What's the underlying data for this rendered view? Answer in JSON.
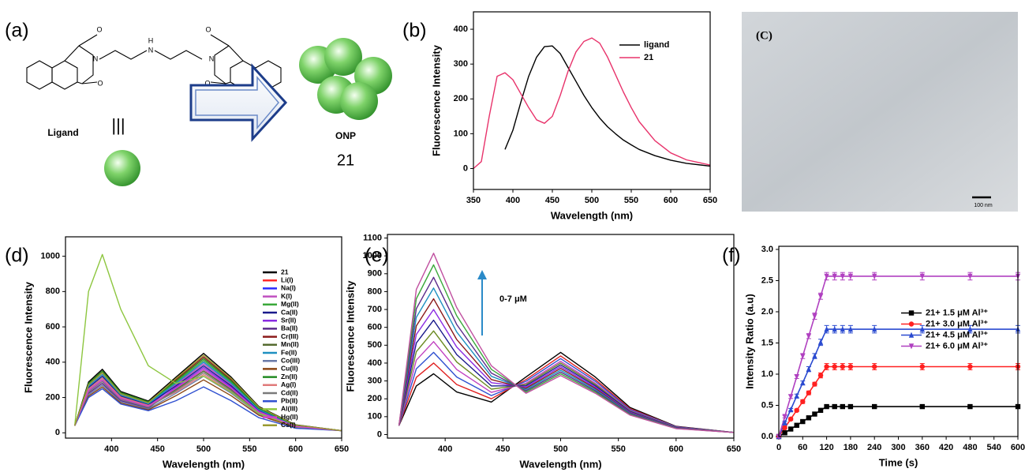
{
  "scheme": {
    "label": "(a)",
    "atoms": [
      "O",
      "N",
      "O",
      "H",
      "N",
      "N",
      "O",
      "O"
    ],
    "ligand": "Ligand",
    "equivalence": "|||",
    "product": "ONP",
    "number": "21"
  },
  "image": {
    "label": "(C)",
    "scale_bar": "100 nm"
  },
  "chart_data": [
    {
      "type": "line",
      "label": "(b)",
      "x_label": "Wavelength (nm)",
      "y_label": "Fluorescence Intensity",
      "xlim": [
        350,
        650
      ],
      "xticks": [
        350,
        400,
        450,
        500,
        550,
        600,
        650
      ],
      "ylim": [
        -60,
        450
      ],
      "yticks": [
        0,
        100,
        200,
        300,
        400
      ],
      "legend": "upper right",
      "x": [
        350,
        360,
        370,
        380,
        390,
        400,
        410,
        420,
        430,
        440,
        450,
        460,
        470,
        480,
        490,
        500,
        510,
        520,
        530,
        540,
        550,
        560,
        580,
        600,
        620,
        650
      ],
      "series": [
        {
          "name": "ligand",
          "color": "#000000",
          "values": [
            null,
            null,
            null,
            null,
            55,
            110,
            190,
            265,
            320,
            350,
            352,
            330,
            290,
            250,
            210,
            175,
            145,
            120,
            100,
            82,
            68,
            55,
            37,
            24,
            15,
            7
          ]
        },
        {
          "name": "21",
          "color": "#e8336b",
          "values": [
            0,
            20,
            150,
            265,
            275,
            255,
            215,
            175,
            140,
            130,
            150,
            210,
            280,
            335,
            365,
            375,
            360,
            320,
            270,
            220,
            175,
            135,
            80,
            45,
            25,
            10
          ]
        }
      ]
    },
    {
      "type": "line",
      "label": "(d)",
      "x_label": "Wavelength (nm)",
      "y_label": "Fluorescence Intensity",
      "xlim": [
        350,
        650
      ],
      "xticks": [
        400,
        450,
        500,
        550,
        600,
        650
      ],
      "ylim": [
        -30,
        1110
      ],
      "yticks": [
        0,
        200,
        400,
        600,
        800,
        1000
      ],
      "legend": "upper right",
      "x": [
        360,
        375,
        390,
        410,
        440,
        470,
        500,
        530,
        560,
        600,
        650
      ],
      "series": [
        {
          "name": "21",
          "color": "#000000",
          "values": [
            40,
            288,
            360,
            234,
            180,
            315,
            450,
            315,
            149,
            45,
            12
          ]
        },
        {
          "name": "Li(I)",
          "color": "#ff2a2a",
          "values": [
            40,
            264,
            330,
            215,
            165,
            294,
            420,
            294,
            139,
            42,
            12
          ]
        },
        {
          "name": "Na(I)",
          "color": "#2a2aff",
          "values": [
            40,
            248,
            310,
            202,
            155,
            280,
            400,
            280,
            132,
            40,
            12
          ]
        },
        {
          "name": "K(I)",
          "color": "#c04fc0",
          "values": [
            40,
            240,
            300,
            195,
            150,
            273,
            390,
            273,
            129,
            39,
            12
          ]
        },
        {
          "name": "Mg(II)",
          "color": "#3aa83a",
          "values": [
            40,
            272,
            340,
            221,
            170,
            287,
            410,
            287,
            135,
            41,
            12
          ]
        },
        {
          "name": "Ca(II)",
          "color": "#1a1a8c",
          "values": [
            40,
            256,
            320,
            208,
            160,
            266,
            380,
            266,
            125,
            38,
            12
          ]
        },
        {
          "name": "Sr(II)",
          "color": "#8a2be2",
          "values": [
            40,
            232,
            290,
            189,
            145,
            259,
            370,
            259,
            122,
            37,
            12
          ]
        },
        {
          "name": "Ba(II)",
          "color": "#5a2a8a",
          "values": [
            40,
            224,
            280,
            182,
            140,
            252,
            360,
            252,
            119,
            36,
            12
          ]
        },
        {
          "name": "Cr(III)",
          "color": "#8b1a1a",
          "values": [
            40,
            280,
            350,
            228,
            175,
            301,
            430,
            301,
            142,
            43,
            12
          ]
        },
        {
          "name": "Mn(II)",
          "color": "#556b2f",
          "values": [
            40,
            240,
            300,
            195,
            150,
            245,
            350,
            245,
            116,
            35,
            12
          ]
        },
        {
          "name": "Fe(II)",
          "color": "#1e90c0",
          "values": [
            40,
            264,
            330,
            215,
            165,
            280,
            400,
            280,
            132,
            40,
            12
          ]
        },
        {
          "name": "Co(III)",
          "color": "#6a7aa8",
          "values": [
            40,
            216,
            270,
            176,
            135,
            224,
            320,
            224,
            106,
            32,
            12
          ]
        },
        {
          "name": "Cu(II)",
          "color": "#8b4513",
          "values": [
            40,
            208,
            260,
            169,
            130,
            210,
            300,
            210,
            99,
            30,
            12
          ]
        },
        {
          "name": "Zn(II)",
          "color": "#228b22",
          "values": [
            40,
            280,
            350,
            228,
            175,
            294,
            420,
            294,
            139,
            42,
            12
          ]
        },
        {
          "name": "Ag(I)",
          "color": "#e07a7a",
          "values": [
            40,
            248,
            310,
            202,
            155,
            231,
            330,
            231,
            109,
            33,
            12
          ]
        },
        {
          "name": "Cd(II)",
          "color": "#7a7a7a",
          "values": [
            40,
            232,
            290,
            189,
            145,
            238,
            340,
            238,
            112,
            34,
            12
          ]
        },
        {
          "name": "Pb(II)",
          "color": "#3050d0",
          "values": [
            40,
            200,
            250,
            163,
            125,
            182,
            260,
            182,
            86,
            26,
            12
          ]
        },
        {
          "name": "Al(III)",
          "color": "#8dc63f",
          "values": [
            40,
            800,
            1010,
            700,
            380,
            280,
            320,
            230,
            110,
            35,
            12
          ]
        },
        {
          "name": "Hg(II)",
          "color": "#d040d0",
          "values": [
            40,
            240,
            300,
            195,
            150,
            252,
            360,
            252,
            119,
            36,
            12
          ]
        },
        {
          "name": "Cs(I)",
          "color": "#9a9a30",
          "values": [
            40,
            272,
            340,
            221,
            170,
            308,
            440,
            308,
            145,
            44,
            12
          ]
        }
      ]
    },
    {
      "type": "line",
      "label": "(e)",
      "x_label": "Wavelength (nm)",
      "y_label": "Fluorescence Intensity",
      "annotation": "0-7 μM",
      "xlim": [
        350,
        650
      ],
      "xticks": [
        400,
        450,
        500,
        550,
        600,
        650
      ],
      "ylim": [
        -20,
        1120
      ],
      "yticks": [
        0,
        100,
        200,
        300,
        400,
        500,
        600,
        700,
        800,
        900,
        1000,
        1100
      ],
      "x": [
        360,
        375,
        390,
        410,
        440,
        470,
        500,
        530,
        560,
        600,
        650
      ],
      "series": [
        {
          "color": "#000000",
          "values": [
            50,
            272,
            340,
            238,
            182,
            322,
            460,
            322,
            152,
            46,
            12
          ]
        },
        {
          "color": "#e02020",
          "values": [
            50,
            320,
            400,
            280,
            200,
            308,
            440,
            308,
            145,
            44,
            12
          ]
        },
        {
          "color": "#3050d0",
          "values": [
            50,
            368,
            460,
            322,
            218,
            298,
            425,
            298,
            140,
            43,
            12
          ]
        },
        {
          "color": "#c040c0",
          "values": [
            50,
            416,
            520,
            364,
            236,
            287,
            410,
            287,
            135,
            41,
            12
          ]
        },
        {
          "color": "#6a8a20",
          "values": [
            50,
            464,
            580,
            406,
            254,
            280,
            400,
            280,
            132,
            40,
            12
          ]
        },
        {
          "color": "#1a1a8c",
          "values": [
            50,
            512,
            640,
            448,
            272,
            273,
            390,
            273,
            129,
            39,
            12
          ]
        },
        {
          "color": "#8a2be2",
          "values": [
            50,
            560,
            700,
            490,
            290,
            266,
            380,
            266,
            125,
            38,
            12
          ]
        },
        {
          "color": "#8b1a1a",
          "values": [
            50,
            608,
            760,
            532,
            308,
            259,
            370,
            259,
            122,
            37,
            12
          ]
        },
        {
          "color": "#1e90c0",
          "values": [
            50,
            656,
            820,
            574,
            326,
            252,
            360,
            252,
            119,
            36,
            12
          ]
        },
        {
          "color": "#5a2a8a",
          "values": [
            50,
            704,
            880,
            616,
            344,
            245,
            350,
            245,
            116,
            35,
            12
          ]
        },
        {
          "color": "#3aa83a",
          "values": [
            50,
            760,
            950,
            665,
            365,
            238,
            340,
            238,
            112,
            34,
            12
          ]
        },
        {
          "color": "#c050a0",
          "values": [
            50,
            812,
            1015,
            711,
            385,
            231,
            330,
            231,
            109,
            33,
            12
          ]
        }
      ]
    },
    {
      "type": "line",
      "label": "(f)",
      "x_label": "Time (s)",
      "y_label": "Intensity Ratio (a.u)",
      "xlim": [
        0,
        600
      ],
      "xticks": [
        0,
        60,
        120,
        180,
        240,
        300,
        360,
        420,
        480,
        540,
        600
      ],
      "ylim": [
        0,
        3.05
      ],
      "yticks": [
        {
          "value": 0,
          "label": "0.0"
        },
        0.5,
        {
          "value": 1,
          "label": "1.0"
        },
        1.5,
        {
          "value": 2,
          "label": "2.0"
        },
        2.5,
        {
          "value": 3,
          "label": "3.0"
        }
      ],
      "legend": "center right",
      "x": [
        0,
        15,
        30,
        45,
        60,
        75,
        90,
        105,
        120,
        140,
        160,
        180,
        240,
        360,
        480,
        600
      ],
      "series": [
        {
          "name": "21+ 1.5 μM Al³⁺",
          "color": "#000000",
          "marker": "square",
          "values": [
            0,
            0.06,
            0.12,
            0.18,
            0.24,
            0.3,
            0.36,
            0.42,
            0.48,
            0.48,
            0.48,
            0.48,
            0.48,
            0.48,
            0.48,
            0.48
          ],
          "errors": [
            0.02,
            0.02,
            0.02,
            0.02,
            0.02,
            0.02,
            0.02,
            0.02,
            0.02,
            0.02,
            0.02,
            0.02,
            0.02,
            0.02,
            0.02,
            0.02
          ]
        },
        {
          "name": "21+ 3.0 μM Al³⁺",
          "color": "#ff2020",
          "marker": "circle",
          "values": [
            0,
            0.14,
            0.28,
            0.42,
            0.56,
            0.7,
            0.84,
            0.98,
            1.12,
            1.12,
            1.12,
            1.12,
            1.12,
            1.12,
            1.12,
            1.12
          ],
          "errors": [
            0.02,
            0.02,
            0.02,
            0.02,
            0.03,
            0.03,
            0.03,
            0.04,
            0.05,
            0.05,
            0.05,
            0.05,
            0.05,
            0.05,
            0.05,
            0.05
          ]
        },
        {
          "name": "21+ 4.5 μM Al³⁺",
          "color": "#2a4ad0",
          "marker": "triangle",
          "values": [
            0,
            0.22,
            0.43,
            0.65,
            0.86,
            1.08,
            1.29,
            1.51,
            1.72,
            1.72,
            1.72,
            1.72,
            1.72,
            1.72,
            1.72,
            1.72
          ],
          "errors": [
            0.02,
            0.02,
            0.02,
            0.03,
            0.03,
            0.04,
            0.04,
            0.05,
            0.06,
            0.06,
            0.06,
            0.06,
            0.06,
            0.06,
            0.06,
            0.06
          ]
        },
        {
          "name": "21+ 6.0 μM Al³⁺",
          "color": "#b040c0",
          "marker": "triangle-down",
          "values": [
            0,
            0.32,
            0.64,
            0.96,
            1.29,
            1.61,
            1.93,
            2.25,
            2.57,
            2.57,
            2.57,
            2.57,
            2.57,
            2.57,
            2.57,
            2.57
          ],
          "errors": [
            0.02,
            0.02,
            0.03,
            0.03,
            0.04,
            0.04,
            0.05,
            0.05,
            0.06,
            0.06,
            0.06,
            0.06,
            0.06,
            0.06,
            0.06,
            0.06
          ]
        }
      ]
    }
  ]
}
